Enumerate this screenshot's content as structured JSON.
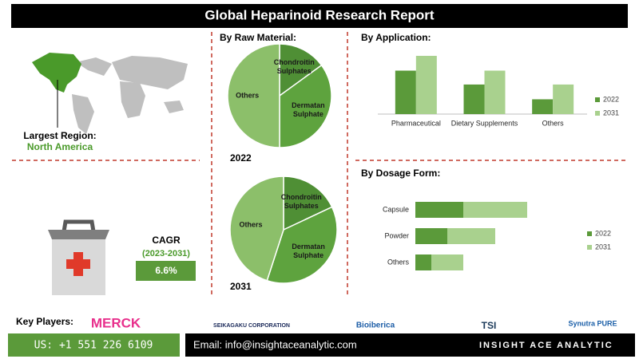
{
  "header": {
    "title": "Global Heparinoid Research Report"
  },
  "region": {
    "label": "Largest Region:",
    "value": "North America"
  },
  "cagr": {
    "label": "CAGR",
    "period": "(2023-2031)",
    "value": "6.6%"
  },
  "key_players": {
    "label": "Key Players:",
    "companies": [
      "MERCK",
      "SEIKAGAKU CORPORATION",
      "Bioiberica",
      "TSI",
      "Synutra PURE"
    ]
  },
  "footer": {
    "phone": "US: +1 551 226 6109",
    "email": "Email: info@insightaceanalytic.com",
    "brand": "INSIGHT ACE ANALYTIC"
  },
  "chart_data": [
    {
      "type": "pie",
      "title": "By Raw Material:",
      "subtitle": "2022",
      "categories": [
        "Chondroitin Sulphates",
        "Dermatan Sulphate",
        "Others"
      ],
      "values": [
        15,
        35,
        50
      ],
      "colors": [
        "#4f8f35",
        "#5ea33e",
        "#8cbf6a"
      ]
    },
    {
      "type": "pie",
      "subtitle": "2031",
      "categories": [
        "Chondroitin Sulphates",
        "Dermatan Sulphate",
        "Others"
      ],
      "values": [
        18,
        37,
        45
      ],
      "colors": [
        "#4f8f35",
        "#5ea33e",
        "#8cbf6a"
      ]
    },
    {
      "type": "bar",
      "title": "By Application:",
      "categories": [
        "Pharmaceutical",
        "Dietary Supplements",
        "Others"
      ],
      "series": [
        {
          "name": "2022",
          "color": "#5b9a3a",
          "values": [
            47,
            32,
            16
          ]
        },
        {
          "name": "2031",
          "color": "#a9d18e",
          "values": [
            63,
            47,
            32
          ]
        }
      ]
    },
    {
      "type": "hbar",
      "title": "By Dosage Form:",
      "categories": [
        "Capsule",
        "Powder",
        "Others"
      ],
      "series": [
        {
          "name": "2022",
          "color": "#5b9a3a",
          "values": [
            60,
            40,
            20
          ]
        },
        {
          "name": "2031",
          "color": "#a9d18e",
          "values": [
            80,
            60,
            40
          ]
        }
      ]
    }
  ]
}
